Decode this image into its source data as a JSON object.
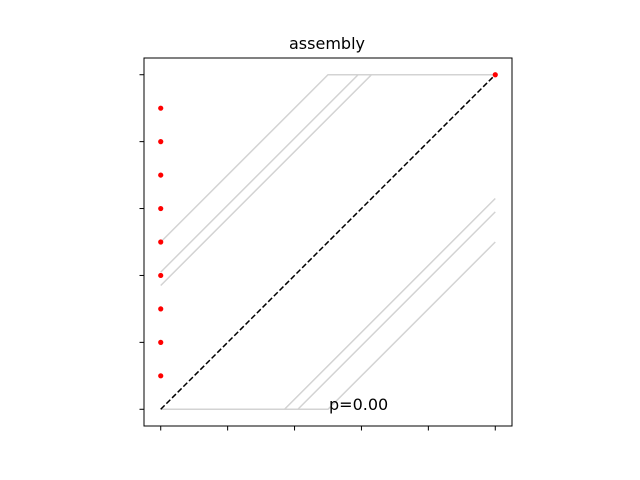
{
  "chart_data": {
    "type": "line",
    "title": "assembly",
    "xlabel": "",
    "ylabel": "",
    "xlim": [
      -0.05,
      1.05
    ],
    "ylim": [
      -0.05,
      1.05
    ],
    "x_ticks": [
      0,
      0.2,
      0.4,
      0.6,
      0.8,
      1.0
    ],
    "y_ticks": [
      0,
      0.2,
      0.4,
      0.6,
      0.8,
      1.0
    ],
    "show_tick_labels": false,
    "grid": false,
    "annotation": "p=0.00",
    "diagonal": {
      "x": [
        0,
        1
      ],
      "y": [
        0,
        1
      ],
      "color": "#000000",
      "style": "dashed"
    },
    "grey_lines": [
      {
        "x": [
          0,
          0.5,
          1.0
        ],
        "y": [
          0.5,
          1.0,
          1.0
        ]
      },
      {
        "x": [
          0,
          0.59,
          1.0
        ],
        "y": [
          0.41,
          1.0,
          1.0
        ]
      },
      {
        "x": [
          0,
          0.63,
          1.0
        ],
        "y": [
          0.37,
          1.0,
          1.0
        ]
      },
      {
        "x": [
          0,
          0.37,
          1.0
        ],
        "y": [
          0.0,
          0.0,
          0.63
        ]
      },
      {
        "x": [
          0,
          0.41,
          1.0
        ],
        "y": [
          0.0,
          0.0,
          0.59
        ]
      },
      {
        "x": [
          0,
          0.5,
          1.0
        ],
        "y": [
          0.0,
          0.0,
          0.5
        ]
      }
    ],
    "points": {
      "color": "#ff0000",
      "x": [
        0,
        0,
        0,
        0,
        0,
        0,
        0,
        0,
        0,
        1.0
      ],
      "y": [
        0.1,
        0.2,
        0.3,
        0.4,
        0.5,
        0.6,
        0.7,
        0.8,
        0.9,
        1.0
      ]
    },
    "colors": {
      "grey": "#d3d3d3",
      "diagonal": "#000000",
      "points": "#ff0000"
    }
  }
}
